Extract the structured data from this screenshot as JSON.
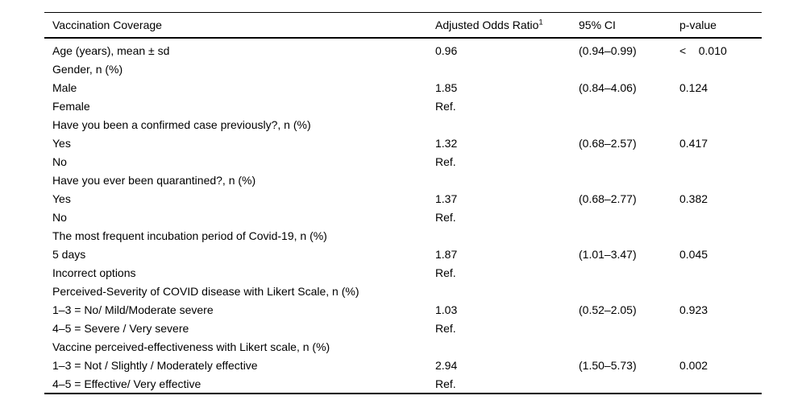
{
  "table": {
    "header": {
      "col1": "Vaccination Coverage",
      "col2": "Adjusted Odds Ratio",
      "col2_sup": "1",
      "col3": "95% CI",
      "col4": "p-value"
    },
    "rows": [
      {
        "label": "Age (years), mean ± sd",
        "aor": "0.96",
        "ci": "(0.94–0.99)",
        "p": "<    0.010"
      },
      {
        "label": "Gender, n (%)",
        "aor": "",
        "ci": "",
        "p": ""
      },
      {
        "label": "Male",
        "aor": "1.85",
        "ci": "(0.84–4.06)",
        "p": "0.124"
      },
      {
        "label": "Female",
        "aor": "Ref.",
        "ci": "",
        "p": ""
      },
      {
        "label": "Have you been a confirmed case previously?, n (%)",
        "aor": "",
        "ci": "",
        "p": ""
      },
      {
        "label": "Yes",
        "aor": "1.32",
        "ci": "(0.68–2.57)",
        "p": "0.417"
      },
      {
        "label": "No",
        "aor": "Ref.",
        "ci": "",
        "p": ""
      },
      {
        "label": "Have you ever been quarantined?, n (%)",
        "aor": "",
        "ci": "",
        "p": ""
      },
      {
        "label": "Yes",
        "aor": "1.37",
        "ci": "(0.68–2.77)",
        "p": "0.382"
      },
      {
        "label": "No",
        "aor": "Ref.",
        "ci": "",
        "p": ""
      },
      {
        "label": "The most frequent incubation period of Covid-19, n (%)",
        "aor": "",
        "ci": "",
        "p": ""
      },
      {
        "label": "5 days",
        "aor": "1.87",
        "ci": "(1.01–3.47)",
        "p": "0.045"
      },
      {
        "label": "Incorrect options",
        "aor": "Ref.",
        "ci": "",
        "p": ""
      },
      {
        "label": "Perceived-Severity of COVID disease with Likert Scale, n (%)",
        "aor": "",
        "ci": "",
        "p": ""
      },
      {
        "label": "1–3 = No/ Mild/Moderate severe",
        "aor": "1.03",
        "ci": "(0.52–2.05)",
        "p": "0.923"
      },
      {
        "label": "4–5 = Severe / Very severe",
        "aor": "Ref.",
        "ci": "",
        "p": ""
      },
      {
        "label": "Vaccine perceived-effectiveness with Likert scale, n (%)",
        "aor": "",
        "ci": "",
        "p": ""
      },
      {
        "label": "1–3 = Not / Slightly / Moderately effective",
        "aor": "2.94",
        "ci": "(1.50–5.73)",
        "p": "0.002"
      },
      {
        "label": "4–5 = Effective/ Very effective",
        "aor": "Ref.",
        "ci": "",
        "p": ""
      }
    ],
    "colors": {
      "text": "#000000",
      "rule": "#000000",
      "background": "#ffffff"
    }
  }
}
